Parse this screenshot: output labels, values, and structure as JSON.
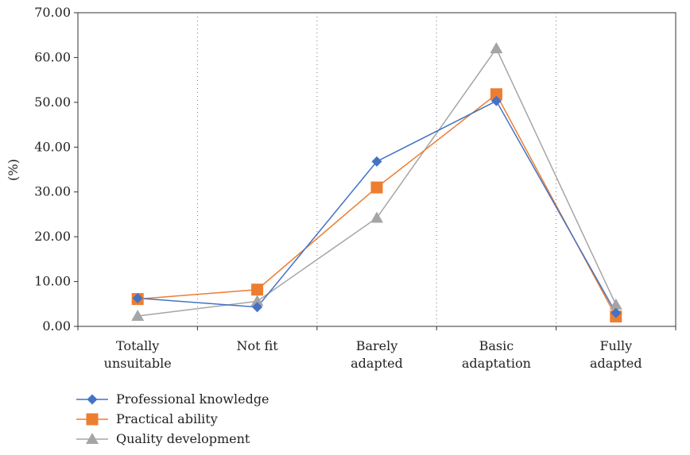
{
  "chart_data": {
    "type": "line",
    "categories": [
      [
        "Totally",
        "unsuitable"
      ],
      [
        "Not fit"
      ],
      [
        "Barely",
        "adapted"
      ],
      [
        "Basic",
        "adaptation"
      ],
      [
        "Fully",
        "adapted"
      ]
    ],
    "series": [
      {
        "name": "Professional knowledge",
        "values": [
          6.3,
          4.3,
          36.8,
          50.3,
          3.0
        ],
        "color": "#4472c4",
        "marker": "diamond"
      },
      {
        "name": "Practical ability",
        "values": [
          6.1,
          8.2,
          31.0,
          51.8,
          2.2
        ],
        "color": "#ed7d31",
        "marker": "square"
      },
      {
        "name": "Quality development",
        "values": [
          2.3,
          5.6,
          24.2,
          62.0,
          4.8
        ],
        "color": "#a5a5a5",
        "marker": "triangle"
      }
    ],
    "ylabel": "(%)",
    "ylim": [
      0,
      70
    ],
    "yticks": [
      "0.00",
      "10.00",
      "20.00",
      "30.00",
      "40.00",
      "50.00",
      "60.00",
      "70.00"
    ],
    "grid": "dotted vertical category separators",
    "legend_position": "bottom-left"
  }
}
